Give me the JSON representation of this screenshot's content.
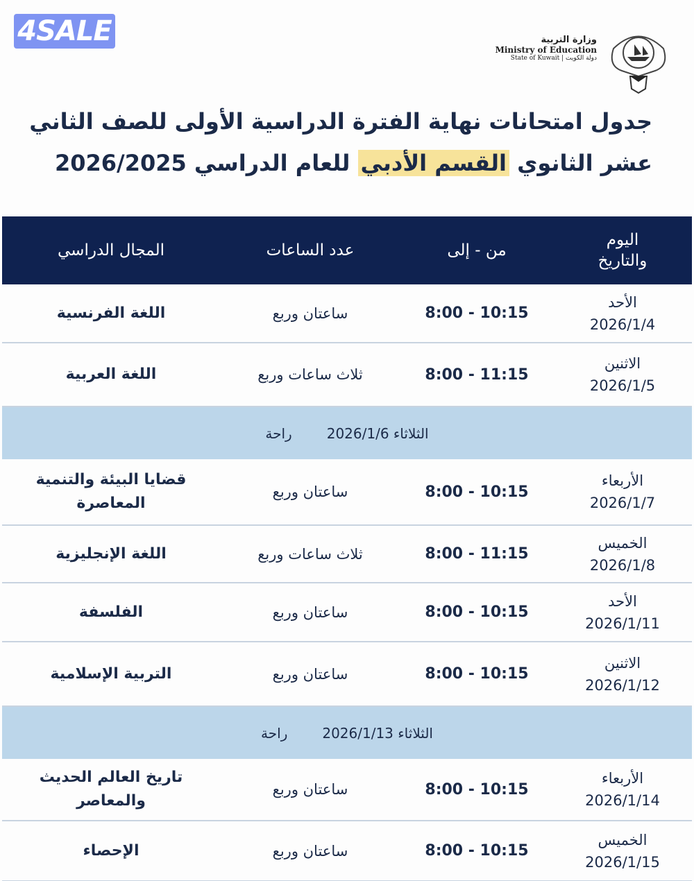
{
  "watermark": "4SALE",
  "ministry": {
    "arabic": "وزارة التربية",
    "english": "Ministry of Education",
    "state": "State of Kuwait | دولة الكويت"
  },
  "title": {
    "line1": "جدول امتحانات نهاية الفترة الدراسية الأولى للصف الثاني",
    "line2_start": "عشر الثانوي",
    "line2_highlight": "القسم الأدبي",
    "line2_end": "للعام الدراسي 2026/2025"
  },
  "colors": {
    "header": "#0f2250",
    "rest_band": "#bcd6ea",
    "highlight": "#f7e39a"
  },
  "headers": {
    "day": "اليوم والتاريخ",
    "time": "من - إلى",
    "hours": "عدد الساعات",
    "subject": "المجال الدراسي"
  },
  "rows": [
    {
      "type": "exam",
      "day": "الأحد",
      "date": "2026/1/4",
      "time": "8:00 - 10:15",
      "hours": "ساعتان وربع",
      "subject": "اللغة الفرنسية",
      "h": 83
    },
    {
      "type": "exam",
      "day": "الاثنين",
      "date": "2026/1/5",
      "time": "8:00 - 11:15",
      "hours": "ثلاث ساعات وربع",
      "subject": "اللغة العربية",
      "h": 90
    },
    {
      "type": "rest",
      "day": "الثلاثاء",
      "date": "2026/1/6",
      "label": "راحة"
    },
    {
      "type": "exam",
      "day": "الأربعاء",
      "date": "2026/1/7",
      "time": "8:00 - 10:15",
      "hours": "ساعتان وربع",
      "subject": "قضايا البيئة والتنمية المعاصرة",
      "h": 94
    },
    {
      "type": "exam",
      "day": "الخميس",
      "date": "2026/1/8",
      "time": "8:00 - 11:15",
      "hours": "ثلاث ساعات وربع",
      "subject": "اللغة الإنجليزية",
      "h": 81
    },
    {
      "type": "exam",
      "day": "الأحد",
      "date": "2026/1/11",
      "time": "8:00 - 10:15",
      "hours": "ساعتان وربع",
      "subject": "الفلسفة",
      "h": 83
    },
    {
      "type": "exam",
      "day": "الاثنين",
      "date": "2026/1/12",
      "time": "8:00 - 10:15",
      "hours": "ساعتان وربع",
      "subject": "التربية الإسلامية",
      "h": 91
    },
    {
      "type": "rest",
      "day": "الثلاثاء",
      "date": "2026/1/13",
      "label": "راحة"
    },
    {
      "type": "exam",
      "day": "الأربعاء",
      "date": "2026/1/14",
      "time": "8:00 - 10:15",
      "hours": "ساعتان وربع",
      "subject": "تاريخ العالم الحديث والمعاصر",
      "h": 88
    },
    {
      "type": "exam",
      "day": "الخميس",
      "date": "2026/1/15",
      "time": "8:00 - 10:15",
      "hours": "ساعتان وربع",
      "subject": "الإحصاء",
      "h": 85
    }
  ]
}
